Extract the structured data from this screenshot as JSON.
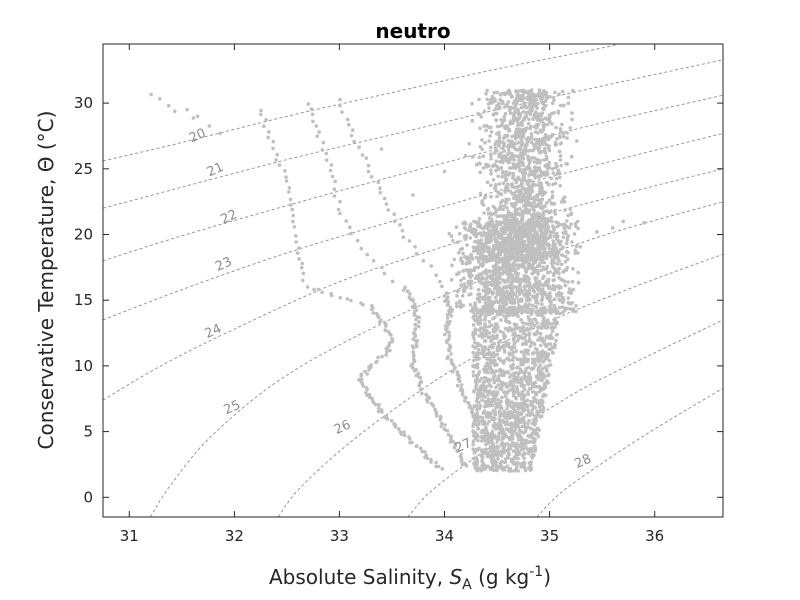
{
  "chart_data": {
    "type": "scatter",
    "title": "neutro",
    "xlabel": {
      "prefix": "Absolute Salinity, ",
      "symbol": "S",
      "subscript": "A",
      "units_open": " (g kg",
      "units_exp": "-1",
      "units_close": ")"
    },
    "ylabel": {
      "text": "Conservative Temperature, ",
      "symbol": "Θ",
      "units": " (°C)"
    },
    "xlim": [
      30.75,
      36.65
    ],
    "ylim": [
      -1.5,
      34.5
    ],
    "xticks": [
      31,
      32,
      33,
      34,
      35,
      36
    ],
    "yticks": [
      0,
      5,
      10,
      15,
      20,
      25,
      30
    ],
    "grid": false,
    "point_color": "#bfbfbf",
    "contour_color": "#8c8c8c",
    "density_contours": [
      {
        "level": "20",
        "points": [
          [
            30.75,
            25.6
          ],
          [
            31.5,
            27.0
          ],
          [
            32.5,
            29.0
          ],
          [
            33.5,
            30.8
          ],
          [
            34.5,
            32.6
          ],
          [
            35.5,
            34.2
          ],
          [
            36.0,
            35.2
          ]
        ]
      },
      {
        "level": "21",
        "points": [
          [
            30.75,
            22.0
          ],
          [
            31.5,
            23.6
          ],
          [
            32.5,
            25.7
          ],
          [
            33.5,
            27.6
          ],
          [
            34.5,
            29.5
          ],
          [
            35.5,
            31.3
          ],
          [
            36.65,
            33.3
          ]
        ]
      },
      {
        "level": "22",
        "points": [
          [
            30.75,
            18.0
          ],
          [
            31.5,
            19.9
          ],
          [
            32.5,
            22.2
          ],
          [
            33.5,
            24.4
          ],
          [
            34.5,
            26.5
          ],
          [
            35.5,
            28.5
          ],
          [
            36.65,
            30.6
          ]
        ]
      },
      {
        "level": "23",
        "points": [
          [
            30.75,
            13.5
          ],
          [
            31.5,
            15.8
          ],
          [
            32.5,
            18.6
          ],
          [
            33.5,
            21.0
          ],
          [
            34.5,
            23.3
          ],
          [
            35.5,
            25.4
          ],
          [
            36.65,
            27.7
          ]
        ]
      },
      {
        "level": "24",
        "points": [
          [
            30.75,
            7.4
          ],
          [
            31.3,
            10.0
          ],
          [
            32.0,
            12.8
          ],
          [
            33.0,
            16.4
          ],
          [
            34.0,
            19.1
          ],
          [
            35.0,
            21.6
          ],
          [
            36.0,
            23.7
          ],
          [
            36.65,
            25.0
          ]
        ]
      },
      {
        "level": "25",
        "points": [
          [
            31.2,
            -1.5
          ],
          [
            31.4,
            1.0
          ],
          [
            31.8,
            4.8
          ],
          [
            32.5,
            9.3
          ],
          [
            33.5,
            13.6
          ],
          [
            34.5,
            17.0
          ],
          [
            35.5,
            19.9
          ],
          [
            36.65,
            22.5
          ]
        ]
      },
      {
        "level": "26",
        "points": [
          [
            32.42,
            -1.5
          ],
          [
            32.6,
            0.5
          ],
          [
            33.0,
            3.5
          ],
          [
            33.5,
            6.6
          ],
          [
            34.2,
            10.3
          ],
          [
            35.0,
            13.4
          ],
          [
            35.8,
            16.0
          ],
          [
            36.65,
            18.5
          ]
        ]
      },
      {
        "level": "27",
        "points": [
          [
            33.65,
            -1.5
          ],
          [
            33.85,
            0.3
          ],
          [
            34.2,
            2.5
          ],
          [
            34.7,
            5.2
          ],
          [
            35.3,
            8.2
          ],
          [
            36.0,
            11.0
          ],
          [
            36.65,
            13.5
          ]
        ]
      },
      {
        "level": "28",
        "points": [
          [
            34.88,
            -1.5
          ],
          [
            35.1,
            0.3
          ],
          [
            35.5,
            2.6
          ],
          [
            36.0,
            5.2
          ],
          [
            36.65,
            8.3
          ]
        ]
      }
    ],
    "contour_labels": [
      {
        "level": "20",
        "x": 31.65,
        "y": 27.5
      },
      {
        "level": "21",
        "x": 31.82,
        "y": 24.9
      },
      {
        "level": "22",
        "x": 31.95,
        "y": 21.3
      },
      {
        "level": "23",
        "x": 31.9,
        "y": 17.7
      },
      {
        "level": "24",
        "x": 31.8,
        "y": 12.6
      },
      {
        "level": "25",
        "x": 31.98,
        "y": 6.8
      },
      {
        "level": "26",
        "x": 33.03,
        "y": 5.3
      },
      {
        "level": "27",
        "x": 34.18,
        "y": 3.9
      },
      {
        "level": "28",
        "x": 35.32,
        "y": 2.7
      }
    ],
    "profiles": [
      {
        "s": [
          31.2,
          31.45,
          31.75,
          31.95
        ],
        "t": [
          30.7,
          29.3,
          28.3,
          27.2
        ]
      },
      {
        "s": [
          32.25,
          32.35,
          32.5,
          32.55,
          32.6,
          32.62,
          32.65,
          32.7,
          33.0,
          33.3,
          33.4,
          33.5,
          33.45,
          33.3,
          33.2,
          33.3,
          33.45,
          33.65,
          33.85,
          34.0
        ],
        "t": [
          29.5,
          27.0,
          24.0,
          21.5,
          19.5,
          18.2,
          17.0,
          16.0,
          15.2,
          14.5,
          13.5,
          12.0,
          11.0,
          10.0,
          9.0,
          7.5,
          6.0,
          4.5,
          3.0,
          2.0
        ]
      },
      {
        "s": [
          32.7,
          32.85,
          32.95,
          33.0,
          33.1,
          33.25,
          33.45,
          33.6,
          33.7,
          33.75,
          33.72,
          33.7,
          33.8,
          33.95,
          34.1,
          34.2
        ],
        "t": [
          30.0,
          26.5,
          24.0,
          22.0,
          20.0,
          18.5,
          17.0,
          16.0,
          15.0,
          13.5,
          12.0,
          10.0,
          8.0,
          6.0,
          4.0,
          2.2
        ]
      },
      {
        "s": [
          33.0,
          33.15,
          33.35,
          33.5,
          33.7,
          33.9,
          34.0,
          34.05,
          34.02,
          34.05,
          34.15,
          34.3,
          34.45,
          34.5
        ],
        "t": [
          30.2,
          27.0,
          24.0,
          21.5,
          19.0,
          17.0,
          15.5,
          14.0,
          12.5,
          10.5,
          8.5,
          6.0,
          3.5,
          2.2
        ]
      }
    ],
    "cloud": {
      "upper": {
        "s_range": [
          34.5,
          35.3
        ],
        "t_range": [
          18.0,
          31.0
        ]
      },
      "middle": {
        "s_range": [
          33.9,
          35.4
        ],
        "t_range": [
          14.0,
          21.0
        ]
      },
      "lower": {
        "s_range": [
          34.35,
          35.1
        ],
        "t_range": [
          2.0,
          14.5
        ]
      }
    }
  }
}
